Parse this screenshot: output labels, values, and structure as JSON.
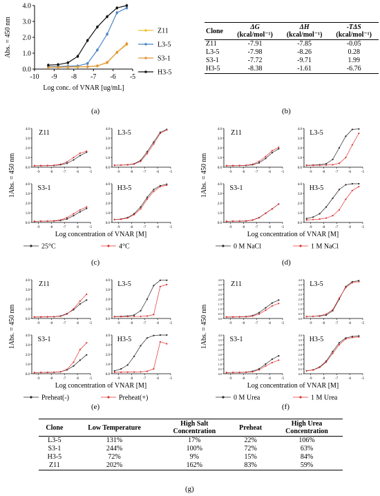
{
  "panel_labels": {
    "a": "(a)",
    "b": "(b)",
    "c": "(c)",
    "d": "(d)",
    "e": "(e)",
    "f": "(f)",
    "g": "(g)"
  },
  "table_b": {
    "headers": [
      [
        "Clone",
        ""
      ],
      [
        "ΔG",
        "(kcal/mol⁻¹)"
      ],
      [
        "ΔH",
        "(kcal/mol⁻¹)"
      ],
      [
        "-TΔS",
        "(kcal/mol⁻¹)"
      ]
    ],
    "rows": [
      [
        "Z11",
        "-7.91",
        "-7.85",
        "-0.05"
      ],
      [
        "L3-5",
        "-7.98",
        "-8.26",
        "0.28"
      ],
      [
        "S3-1",
        "-7.72",
        "-9.71",
        "1.99"
      ],
      [
        "H3-5",
        "-8.38",
        "-1.61",
        "-6.76"
      ]
    ]
  },
  "table_g": {
    "headers": [
      "Clone",
      "Low Temperature",
      "High Salt Concentration",
      "Preheat",
      "High Urea Concentration"
    ],
    "rows": [
      [
        "L3-5",
        "131%",
        "17%",
        "22%",
        "106%"
      ],
      [
        "S3-1",
        "244%",
        "100%",
        "72%",
        "63%"
      ],
      [
        "H3-5",
        "72%",
        "9%",
        "15%",
        "84%"
      ],
      [
        "Z11",
        "202%",
        "162%",
        "83%",
        "59%"
      ]
    ]
  },
  "colors": {
    "Z11": "#f0c030",
    "L3-5": "#4a84c4",
    "S3-1": "#e0953a",
    "H3-5": "#111111",
    "ref": "#222222",
    "test": "#e03030"
  },
  "chart_data": [
    {
      "id": "a",
      "type": "line",
      "xlabel": "Log conc. of VNAR [ug/mL]",
      "ylabel": "Abs. = 450 nm",
      "xlim": [
        -10,
        -5
      ],
      "ylim": [
        0,
        4
      ],
      "xticks": [
        "-10",
        "-9",
        "-8",
        "-7",
        "-6",
        "-5"
      ],
      "yticks": [
        "0.0",
        "1.0",
        "2.0",
        "3.0",
        "4.0"
      ],
      "legend_position": "right",
      "series": [
        {
          "name": "Z11",
          "color": "#f0c030",
          "x": [
            -9.3,
            -8.8,
            -8.3,
            -7.8,
            -7.3,
            -6.8,
            -6.3,
            -5.8,
            -5.3
          ],
          "y": [
            0.12,
            0.12,
            0.13,
            0.14,
            0.15,
            0.2,
            0.4,
            1.05,
            1.55
          ]
        },
        {
          "name": "L3-5",
          "color": "#4a84c4",
          "x": [
            -9.3,
            -8.8,
            -8.3,
            -7.8,
            -7.3,
            -6.8,
            -6.3,
            -5.8,
            -5.3
          ],
          "y": [
            0.15,
            0.16,
            0.18,
            0.2,
            0.35,
            1.2,
            2.2,
            3.55,
            3.85
          ]
        },
        {
          "name": "S3-1",
          "color": "#e0953a",
          "x": [
            -9.3,
            -8.8,
            -8.3,
            -7.8,
            -7.3,
            -6.8,
            -6.3,
            -5.8,
            -5.3
          ],
          "y": [
            0.12,
            0.12,
            0.13,
            0.14,
            0.15,
            0.2,
            0.42,
            1.05,
            1.6
          ]
        },
        {
          "name": "H3-5",
          "color": "#111111",
          "x": [
            -9.3,
            -8.8,
            -8.3,
            -7.8,
            -7.3,
            -6.8,
            -6.3,
            -5.8,
            -5.3
          ],
          "y": [
            0.25,
            0.28,
            0.4,
            0.8,
            1.8,
            2.65,
            3.3,
            3.85,
            4.0
          ]
        }
      ]
    },
    {
      "id": "c",
      "type": "line",
      "xlabel": "Log concentration of VNAR [M]",
      "ylabel": "1Abs. = 450 nm",
      "xlim": [
        -9.5,
        -5
      ],
      "ylim": [
        0,
        4
      ],
      "xticks": [
        "-9",
        "-8",
        "-7",
        "-6",
        "-5"
      ],
      "yticks": [
        "0.0",
        "1.0",
        "2.0",
        "3.0",
        "4.0"
      ],
      "legend": [
        "25°C",
        "4°C"
      ],
      "subplots": [
        {
          "title": "Z11",
          "x": [
            -9.3,
            -8.8,
            -8.3,
            -7.8,
            -7.3,
            -6.8,
            -6.3,
            -5.8,
            -5.3
          ],
          "ref": [
            0.15,
            0.16,
            0.17,
            0.18,
            0.25,
            0.4,
            0.75,
            1.2,
            1.55
          ],
          "test": [
            0.15,
            0.16,
            0.17,
            0.2,
            0.3,
            0.55,
            1.0,
            1.45,
            1.65
          ]
        },
        {
          "title": "L3-5",
          "x": [
            -9.3,
            -8.8,
            -8.3,
            -7.8,
            -7.3,
            -6.8,
            -6.3,
            -5.8,
            -5.3
          ],
          "ref": [
            0.2,
            0.22,
            0.25,
            0.35,
            0.7,
            1.6,
            2.6,
            3.6,
            3.9
          ],
          "test": [
            0.2,
            0.22,
            0.24,
            0.32,
            0.6,
            1.4,
            2.4,
            3.5,
            3.85
          ]
        },
        {
          "title": "S3-1",
          "x": [
            -9.3,
            -8.8,
            -8.3,
            -7.8,
            -7.3,
            -6.8,
            -6.3,
            -5.8,
            -5.3
          ],
          "ref": [
            0.12,
            0.13,
            0.14,
            0.15,
            0.2,
            0.35,
            0.7,
            1.1,
            1.45
          ],
          "test": [
            0.12,
            0.13,
            0.14,
            0.17,
            0.25,
            0.5,
            0.9,
            1.3,
            1.6
          ]
        },
        {
          "title": "H3-5",
          "x": [
            -9.3,
            -8.8,
            -8.3,
            -7.8,
            -7.3,
            -6.8,
            -6.3,
            -5.8,
            -5.3
          ],
          "ref": [
            0.3,
            0.35,
            0.5,
            0.9,
            1.6,
            2.6,
            3.4,
            3.8,
            3.95
          ],
          "test": [
            0.3,
            0.33,
            0.45,
            0.8,
            1.4,
            2.4,
            3.2,
            3.7,
            3.85
          ]
        }
      ]
    },
    {
      "id": "d",
      "type": "line",
      "xlabel": "Log concentration of VNAR [M]",
      "ylabel": "1Abs. = 450 nm",
      "xlim": [
        -9.5,
        -5
      ],
      "ylim": [
        0,
        4
      ],
      "xticks": [
        "-9",
        "-8",
        "-7",
        "-6",
        "-5"
      ],
      "yticks": [
        "0.0",
        "1.0",
        "2.0",
        "3.0",
        "4.0"
      ],
      "legend": [
        "0 M NaCl",
        "1 M NaCl"
      ],
      "subplots": [
        {
          "title": "Z11",
          "x": [
            -9.3,
            -8.8,
            -8.3,
            -7.8,
            -7.3,
            -6.8,
            -6.3,
            -5.8,
            -5.3
          ],
          "ref": [
            0.15,
            0.16,
            0.17,
            0.18,
            0.25,
            0.45,
            0.9,
            1.5,
            1.9
          ],
          "test": [
            0.15,
            0.16,
            0.17,
            0.2,
            0.3,
            0.6,
            1.1,
            1.7,
            2.05
          ]
        },
        {
          "title": "L3-5",
          "x": [
            -9.3,
            -8.8,
            -8.3,
            -7.8,
            -7.3,
            -6.8,
            -6.3,
            -5.8,
            -5.3
          ],
          "ref": [
            0.2,
            0.22,
            0.25,
            0.35,
            0.8,
            2.0,
            3.2,
            3.9,
            3.95
          ],
          "test": [
            0.18,
            0.19,
            0.2,
            0.22,
            0.25,
            0.4,
            1.0,
            2.3,
            3.5
          ]
        },
        {
          "title": "S3-1",
          "x": [
            -9.3,
            -8.8,
            -8.3,
            -7.8,
            -7.3,
            -6.8,
            -6.3,
            -5.8,
            -5.3
          ],
          "ref": [
            0.12,
            0.13,
            0.14,
            0.15,
            0.25,
            0.5,
            0.95,
            1.4,
            1.9
          ],
          "test": [
            0.12,
            0.13,
            0.14,
            0.15,
            0.24,
            0.48,
            0.95,
            1.4,
            1.9
          ]
        },
        {
          "title": "H3-5",
          "x": [
            -9.3,
            -8.8,
            -8.3,
            -7.8,
            -7.3,
            -6.8,
            -6.3,
            -5.8,
            -5.3
          ],
          "ref": [
            0.4,
            0.55,
            0.9,
            1.6,
            2.5,
            3.4,
            3.9,
            4.0,
            4.0
          ],
          "test": [
            0.25,
            0.3,
            0.35,
            0.45,
            0.7,
            1.3,
            2.4,
            3.3,
            3.7
          ]
        }
      ]
    },
    {
      "id": "e",
      "type": "line",
      "xlabel": "Log concentration of VNAR [M]",
      "ylabel": "1Abs. = 450 nm",
      "xlim": [
        -9.5,
        -5
      ],
      "ylim": [
        0,
        4
      ],
      "xticks": [
        "-9",
        "-8",
        "-7",
        "-6",
        "-5"
      ],
      "yticks": [
        "0.0",
        "1.0",
        "2.0",
        "3.0",
        "4.0"
      ],
      "legend": [
        "Preheat(-)",
        "Preheat(+)"
      ],
      "subplots": [
        {
          "title": "Z11",
          "x": [
            -9.3,
            -8.8,
            -8.3,
            -7.8,
            -7.3,
            -6.8,
            -6.3,
            -5.8,
            -5.3
          ],
          "ref": [
            0.15,
            0.16,
            0.17,
            0.18,
            0.25,
            0.5,
            0.9,
            1.5,
            1.9
          ],
          "test": [
            0.15,
            0.16,
            0.17,
            0.18,
            0.22,
            0.45,
            1.0,
            1.8,
            2.5
          ]
        },
        {
          "title": "L3-5",
          "x": [
            -9.3,
            -8.8,
            -8.3,
            -7.8,
            -7.3,
            -6.8,
            -6.3,
            -5.8,
            -5.3
          ],
          "ref": [
            0.2,
            0.22,
            0.25,
            0.35,
            0.8,
            2.0,
            3.4,
            3.95,
            3.95
          ],
          "test": [
            0.18,
            0.19,
            0.2,
            0.21,
            0.22,
            0.25,
            0.4,
            3.3,
            3.5
          ]
        },
        {
          "title": "S3-1",
          "x": [
            -9.3,
            -8.8,
            -8.3,
            -7.8,
            -7.3,
            -6.8,
            -6.3,
            -5.8,
            -5.3
          ],
          "ref": [
            0.12,
            0.13,
            0.14,
            0.15,
            0.2,
            0.4,
            0.8,
            1.4,
            1.95
          ],
          "test": [
            0.12,
            0.13,
            0.14,
            0.15,
            0.2,
            0.45,
            1.2,
            2.5,
            3.2
          ]
        },
        {
          "title": "H3-5",
          "x": [
            -9.3,
            -8.8,
            -8.3,
            -7.8,
            -7.3,
            -6.8,
            -6.3,
            -5.8,
            -5.3
          ],
          "ref": [
            0.3,
            0.5,
            0.9,
            1.8,
            2.9,
            3.7,
            3.95,
            4.0,
            4.0
          ],
          "test": [
            0.15,
            0.16,
            0.17,
            0.18,
            0.2,
            0.25,
            0.5,
            3.3,
            3.1
          ]
        }
      ]
    },
    {
      "id": "f",
      "type": "line",
      "xlabel": "Log concentration of VNAR [M]",
      "ylabel": "1Abs. = 450 nm",
      "xlim": [
        -9.5,
        -5
      ],
      "ylim": [
        0,
        4
      ],
      "xticks": [
        "-9",
        "-8",
        "-7",
        "-6",
        "-5"
      ],
      "yticks": [
        "0.0",
        "0.5",
        "1.0",
        "1.5",
        "2.0",
        "2.5",
        "3.0",
        "3.5",
        "4.0"
      ],
      "legend": [
        "0 M Urea",
        "1 M Urea"
      ],
      "subplots": [
        {
          "title": "Z11",
          "x": [
            -9.3,
            -8.8,
            -8.3,
            -7.8,
            -7.3,
            -6.8,
            -6.3,
            -5.8,
            -5.3
          ],
          "ref": [
            0.15,
            0.16,
            0.17,
            0.2,
            0.3,
            0.6,
            1.1,
            1.6,
            1.9
          ],
          "test": [
            0.15,
            0.16,
            0.17,
            0.18,
            0.25,
            0.45,
            0.85,
            1.3,
            1.55
          ]
        },
        {
          "title": "L3-5",
          "x": [
            -9.3,
            -8.8,
            -8.3,
            -7.8,
            -7.3,
            -6.8,
            -6.3,
            -5.8,
            -5.3
          ],
          "ref": [
            0.2,
            0.22,
            0.25,
            0.35,
            0.8,
            2.0,
            3.3,
            3.8,
            3.9
          ],
          "test": [
            0.2,
            0.22,
            0.28,
            0.45,
            0.9,
            2.1,
            3.2,
            3.7,
            3.8
          ]
        },
        {
          "title": "S3-1",
          "x": [
            -9.3,
            -8.8,
            -8.3,
            -7.8,
            -7.3,
            -6.8,
            -6.3,
            -5.8,
            -5.3
          ],
          "ref": [
            0.12,
            0.13,
            0.14,
            0.16,
            0.25,
            0.5,
            1.0,
            1.5,
            1.85
          ],
          "test": [
            0.12,
            0.13,
            0.14,
            0.15,
            0.2,
            0.4,
            0.8,
            1.15,
            1.4
          ]
        },
        {
          "title": "H3-5",
          "x": [
            -9.3,
            -8.8,
            -8.3,
            -7.8,
            -7.3,
            -6.8,
            -6.3,
            -5.8,
            -5.3
          ],
          "ref": [
            0.3,
            0.4,
            0.7,
            1.3,
            2.3,
            3.2,
            3.7,
            3.85,
            3.9
          ],
          "test": [
            0.3,
            0.38,
            0.65,
            1.2,
            2.1,
            3.0,
            3.6,
            3.75,
            3.8
          ]
        }
      ]
    }
  ]
}
